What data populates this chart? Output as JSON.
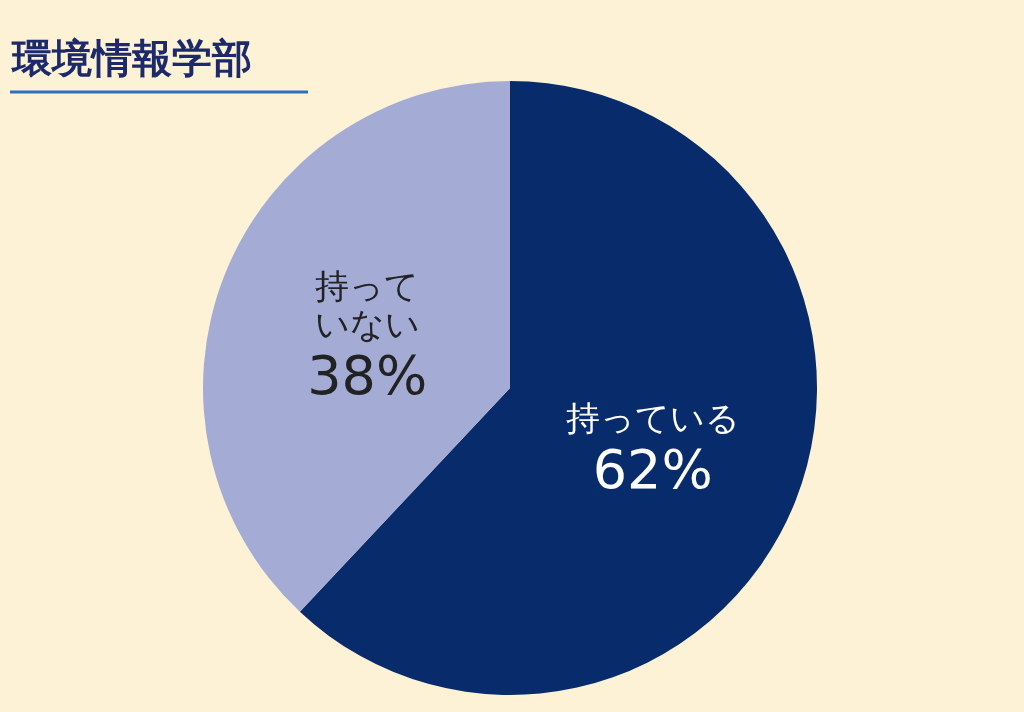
{
  "chart_data": {
    "type": "pie",
    "title": "環境情報学部",
    "categories": [
      "持っている",
      "持っていない"
    ],
    "values": [
      62,
      38
    ],
    "colors": [
      "#082b6b",
      "#a4acd6"
    ],
    "value_labels": [
      "62%",
      "38%"
    ]
  }
}
